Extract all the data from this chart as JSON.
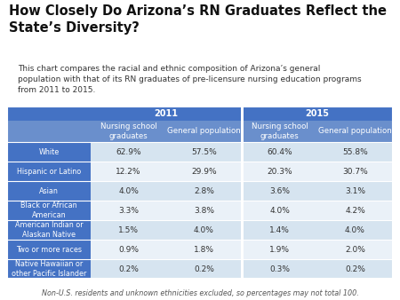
{
  "title": "How Closely Do Arizona’s RN Graduates Reflect the\nState’s Diversity?",
  "subtitle": "This chart compares the racial and ethnic composition of Arizona’s general\npopulation with that of its RN graduates of pre-licensure nursing education programs\nfrom 2011 to 2015.",
  "footnote": "Non-U.S. residents and unknown ethnicities excluded, so percentages may not total 100.",
  "col_headers_year": [
    "2011",
    "2015"
  ],
  "col_headers_sub": [
    "Nursing school\ngraduates",
    "General population",
    "Nursing school\ngraduates",
    "General population"
  ],
  "row_labels": [
    "White",
    "Hispanic or Latino",
    "Asian",
    "Black or African\nAmerican",
    "American Indian or\nAlaskan Native",
    "Two or more races",
    "Native Hawaiian or\nother Pacific Islander"
  ],
  "data": [
    [
      "62.9%",
      "57.5%",
      "60.4%",
      "55.8%"
    ],
    [
      "12.2%",
      "29.9%",
      "20.3%",
      "30.7%"
    ],
    [
      "4.0%",
      "2.8%",
      "3.6%",
      "3.1%"
    ],
    [
      "3.3%",
      "3.8%",
      "4.0%",
      "4.2%"
    ],
    [
      "1.5%",
      "4.0%",
      "1.4%",
      "4.0%"
    ],
    [
      "0.9%",
      "1.8%",
      "1.9%",
      "2.0%"
    ],
    [
      "0.2%",
      "0.2%",
      "0.3%",
      "0.2%"
    ]
  ],
  "color_header_dark": "#4472C4",
  "color_header_medium": "#6A8FCC",
  "color_row_label": "#4472C4",
  "color_row_even": "#D6E4F0",
  "color_row_odd": "#EAF1F8",
  "color_text_header": "#FFFFFF",
  "color_text_data": "#333333",
  "color_bg": "#FFFFFF",
  "title_fontsize": 10.5,
  "subtitle_fontsize": 6.5,
  "table_header_fontsize": 6.2,
  "data_fontsize": 6.5,
  "row_label_fontsize": 5.8,
  "footnote_fontsize": 5.8
}
